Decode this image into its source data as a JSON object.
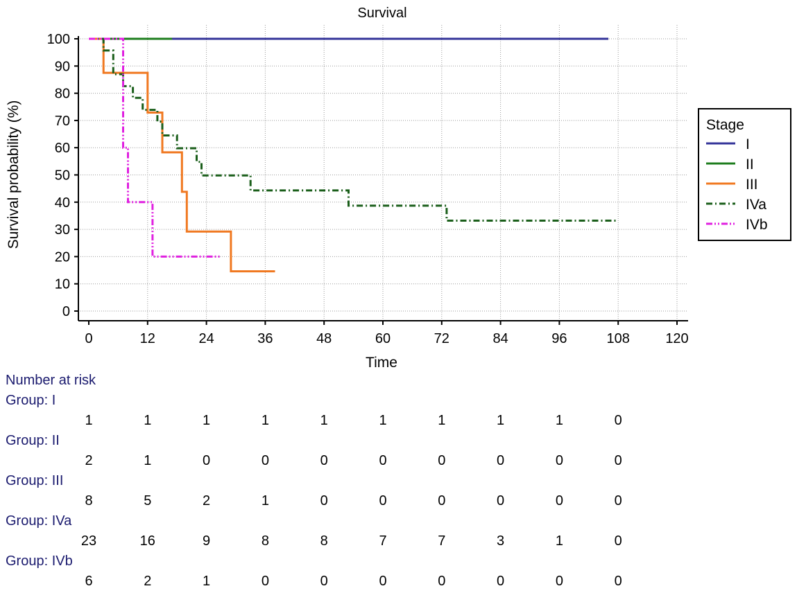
{
  "chart_data": {
    "type": "line",
    "step": true,
    "title": "Survival",
    "xlabel": "Time",
    "ylabel": "Survival probability (%)",
    "xlim": [
      0,
      120
    ],
    "ylim": [
      0,
      100
    ],
    "xticks": [
      0,
      12,
      24,
      36,
      48,
      60,
      72,
      84,
      96,
      108,
      120
    ],
    "yticks": [
      0,
      10,
      20,
      30,
      40,
      50,
      60,
      70,
      80,
      90,
      100
    ],
    "grid": true,
    "legend": {
      "title": "Stage",
      "position": "right"
    },
    "series": [
      {
        "name": "I",
        "color": "#333399",
        "dash": "solid",
        "points": [
          [
            0,
            100
          ],
          [
            106,
            100
          ]
        ]
      },
      {
        "name": "II",
        "color": "#1e7d1e",
        "dash": "solid",
        "points": [
          [
            0,
            100
          ],
          [
            17,
            100
          ]
        ]
      },
      {
        "name": "III",
        "color": "#f07820",
        "dash": "solid",
        "points": [
          [
            0,
            100
          ],
          [
            3,
            100
          ],
          [
            3,
            87.5
          ],
          [
            12,
            87.5
          ],
          [
            12,
            72.9
          ],
          [
            15,
            72.9
          ],
          [
            15,
            58.3
          ],
          [
            19,
            58.3
          ],
          [
            19,
            43.8
          ],
          [
            20,
            43.8
          ],
          [
            20,
            29.2
          ],
          [
            29,
            29.2
          ],
          [
            29,
            14.6
          ],
          [
            38,
            14.6
          ]
        ]
      },
      {
        "name": "IVa",
        "color": "#1a5e1a",
        "dash": "dashdot",
        "points": [
          [
            0,
            100
          ],
          [
            3,
            100
          ],
          [
            3,
            95.7
          ],
          [
            5,
            95.7
          ],
          [
            5,
            87
          ],
          [
            7,
            87
          ],
          [
            7,
            82.6
          ],
          [
            9,
            82.6
          ],
          [
            9,
            78.3
          ],
          [
            11,
            78.3
          ],
          [
            11,
            73.9
          ],
          [
            14,
            73.9
          ],
          [
            14,
            69.6
          ],
          [
            15,
            69.6
          ],
          [
            15,
            64.5
          ],
          [
            18,
            64.5
          ],
          [
            18,
            59.8
          ],
          [
            22,
            59.8
          ],
          [
            22,
            54.8
          ],
          [
            23,
            54.8
          ],
          [
            23,
            49.8
          ],
          [
            33,
            49.8
          ],
          [
            33,
            44.3
          ],
          [
            53,
            44.3
          ],
          [
            53,
            38.7
          ],
          [
            73,
            38.7
          ],
          [
            73,
            33.2
          ],
          [
            108,
            33.2
          ]
        ]
      },
      {
        "name": "IVb",
        "color": "#e020e0",
        "dash": "dashdotdot",
        "points": [
          [
            0,
            100
          ],
          [
            7,
            100
          ],
          [
            7,
            60
          ],
          [
            8,
            60
          ],
          [
            8,
            40
          ],
          [
            13,
            40
          ],
          [
            13,
            20
          ],
          [
            27,
            20
          ]
        ]
      }
    ]
  },
  "risk_table": {
    "title": "Number at risk",
    "times": [
      0,
      12,
      24,
      36,
      48,
      60,
      72,
      84,
      96,
      108
    ],
    "groups": [
      {
        "label": "Group: I",
        "values": [
          "1",
          "1",
          "1",
          "1",
          "1",
          "1",
          "1",
          "1",
          "1",
          "0"
        ]
      },
      {
        "label": "Group: II",
        "values": [
          "2",
          "1",
          "0",
          "0",
          "0",
          "0",
          "0",
          "0",
          "0",
          "0"
        ]
      },
      {
        "label": "Group: III",
        "values": [
          "8",
          "5",
          "2",
          "1",
          "0",
          "0",
          "0",
          "0",
          "0",
          "0"
        ]
      },
      {
        "label": "Group: IVa",
        "values": [
          "23",
          "16",
          "9",
          "8",
          "8",
          "7",
          "7",
          "3",
          "1",
          "0"
        ]
      },
      {
        "label": "Group: IVb",
        "values": [
          "6",
          "2",
          "1",
          "0",
          "0",
          "0",
          "0",
          "0",
          "0",
          "0"
        ]
      }
    ]
  }
}
